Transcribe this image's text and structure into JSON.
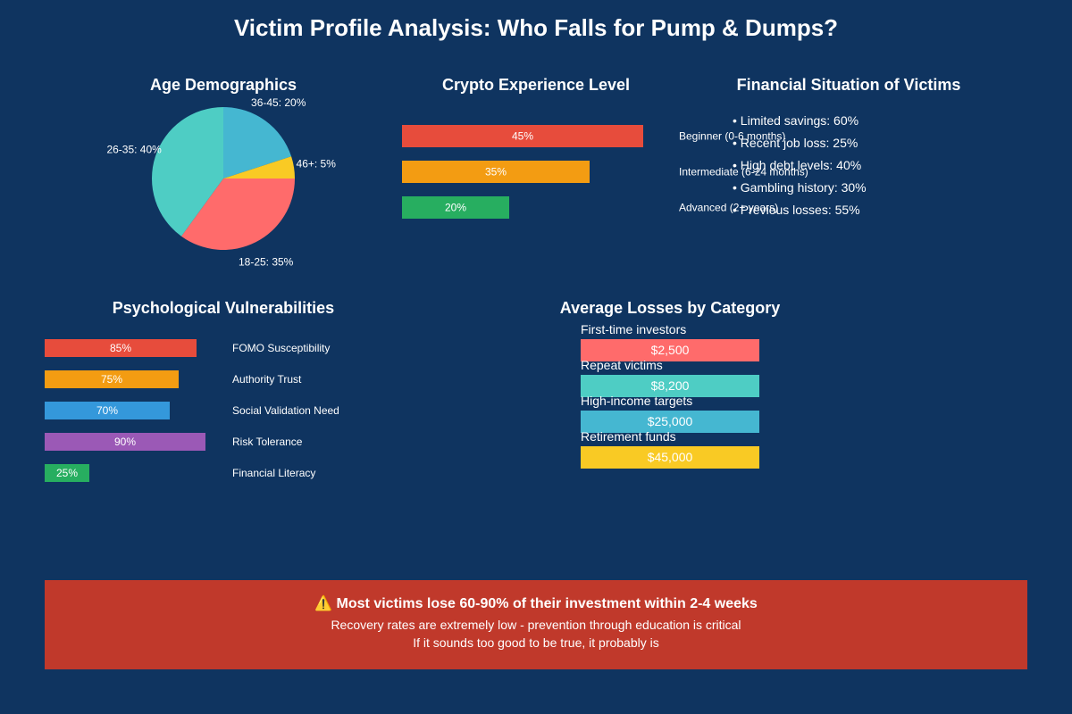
{
  "title": "Victim Profile Analysis: Who Falls for Pump & Dumps?",
  "colors": {
    "background": "#0f3460",
    "warning_box": "#c0392b"
  },
  "chart_data": [
    {
      "type": "pie",
      "title": "Age Demographics",
      "labels": [
        "36-45: 20%",
        "46+: 5%",
        "18-25: 35%",
        "26-35: 40%"
      ],
      "values": [
        20,
        5,
        35,
        40
      ],
      "colors": [
        "#45b7d1",
        "#f9ca24",
        "#ff6b6b",
        "#4ecdc4"
      ]
    },
    {
      "type": "bar",
      "orientation": "horizontal",
      "title": "Crypto Experience Level",
      "categories": [
        "Beginner (0-6 months)",
        "Intermediate (6-24 months)",
        "Advanced (2+ years)"
      ],
      "values": [
        45,
        35,
        20
      ],
      "value_labels": [
        "45%",
        "35%",
        "20%"
      ],
      "colors": [
        "#e74c3c",
        "#f39c12",
        "#27ae60"
      ]
    },
    {
      "type": "table",
      "title": "Financial Situation of Victims",
      "items": [
        "• Limited savings: 60%",
        "• Recent job loss: 25%",
        "• High debt levels: 40%",
        "• Gambling history: 30%",
        "• Previous losses: 55%"
      ]
    },
    {
      "type": "bar",
      "orientation": "horizontal",
      "title": "Psychological Vulnerabilities",
      "categories": [
        "FOMO Susceptibility",
        "Authority Trust",
        "Social Validation Need",
        "Risk Tolerance",
        "Financial Literacy"
      ],
      "values": [
        85,
        75,
        70,
        90,
        25
      ],
      "value_labels": [
        "85%",
        "75%",
        "70%",
        "90%",
        "25%"
      ],
      "colors": [
        "#e74c3c",
        "#f39c12",
        "#3498db",
        "#9b59b6",
        "#27ae60"
      ]
    },
    {
      "type": "bar",
      "orientation": "horizontal",
      "title": "Average Losses by Category",
      "categories": [
        "First-time investors",
        "Repeat victims",
        "High-income targets",
        "Retirement funds"
      ],
      "values": [
        2500,
        8200,
        25000,
        45000
      ],
      "value_labels": [
        "$2,500",
        "$8,200",
        "$25,000",
        "$45,000"
      ],
      "colors": [
        "#ff6b6b",
        "#4ecdc4",
        "#45b7d1",
        "#f9ca24"
      ]
    }
  ],
  "warning": {
    "headline": "⚠️ Most victims lose 60-90% of their investment within 2-4 weeks",
    "line1": "Recovery rates are extremely low - prevention through education is critical",
    "line2": "If it sounds too good to be true, it probably is"
  }
}
